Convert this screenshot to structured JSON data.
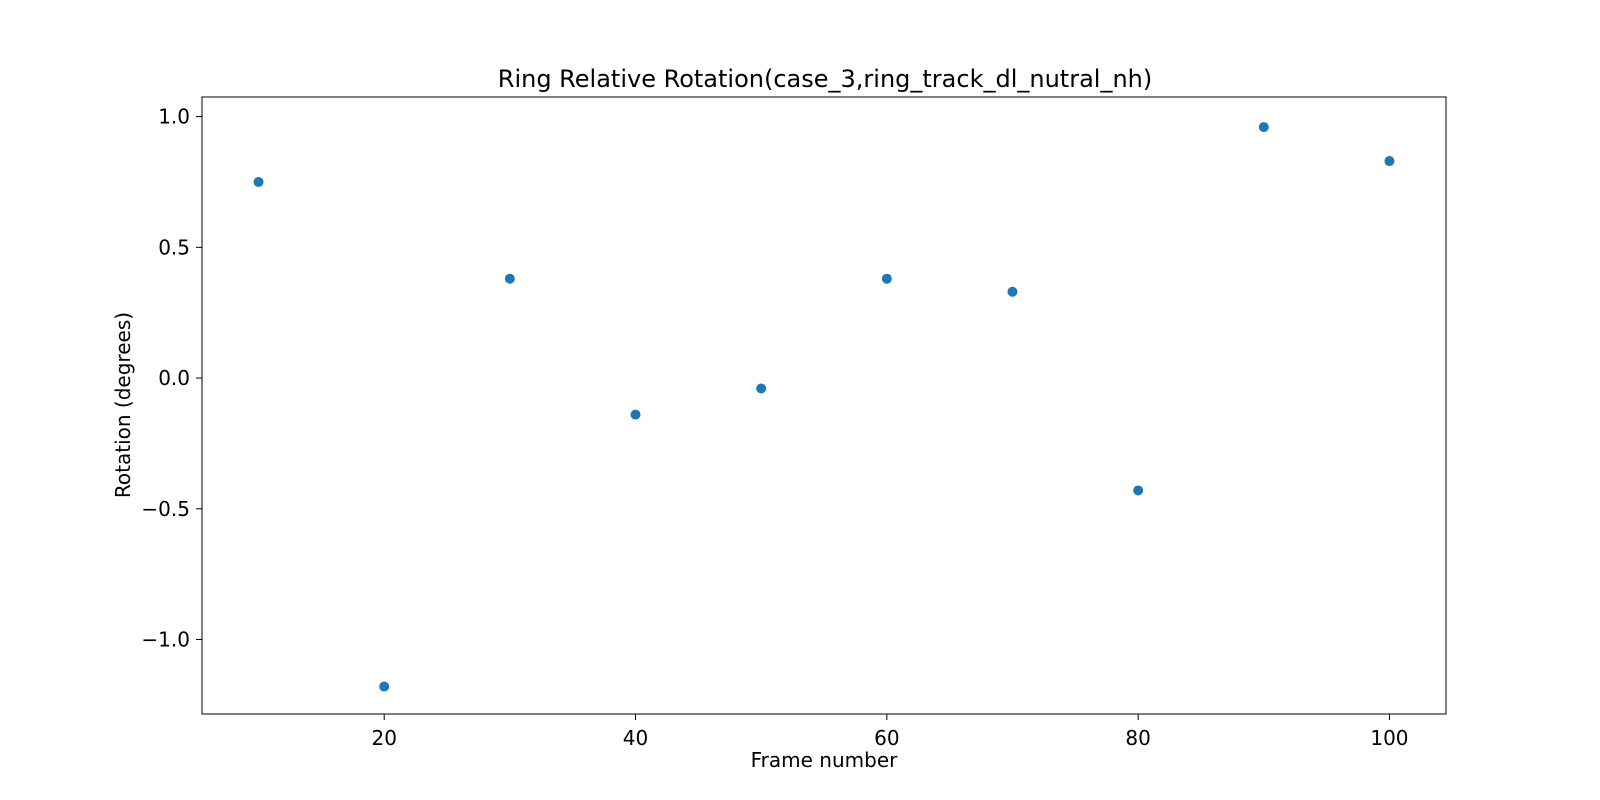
{
  "chart_data": {
    "type": "scatter",
    "title": "Ring Relative Rotation(case_3,ring_track_dl_nutral_nh)",
    "xlabel": "Frame number",
    "ylabel": "Rotation (degrees)",
    "xlim": [
      5.5,
      104.5
    ],
    "ylim": [
      -1.285,
      1.075
    ],
    "xticks": [
      20,
      40,
      60,
      80,
      100
    ],
    "xtick_labels": [
      "20",
      "40",
      "60",
      "80",
      "100"
    ],
    "yticks": [
      1.0,
      0.5,
      0.0,
      -0.5,
      -1.0
    ],
    "ytick_labels": [
      "1.0",
      "0.5",
      "0.0",
      "−0.5",
      "−1.0"
    ],
    "grid": false,
    "marker_color": "#1f77b4",
    "series": [
      {
        "x": [
          10,
          20,
          30,
          40,
          50,
          60,
          70,
          80,
          90,
          100
        ],
        "y": [
          0.75,
          -1.18,
          0.38,
          -0.14,
          -0.04,
          0.38,
          0.33,
          -0.43,
          0.96,
          0.83
        ]
      }
    ]
  }
}
